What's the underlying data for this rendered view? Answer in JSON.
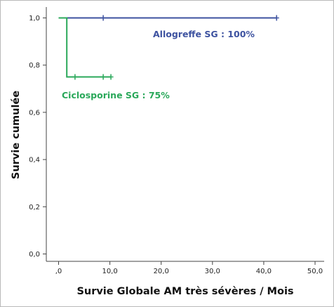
{
  "chart_data": {
    "type": "line",
    "subtype": "kaplan-meier",
    "xlabel": "Survie Globale AM très sévères / Mois",
    "ylabel": "Survie cumulée",
    "xlim": [
      0,
      50
    ],
    "ylim": [
      0,
      1
    ],
    "x_ticks": [
      0,
      10,
      20,
      30,
      40,
      50
    ],
    "x_tick_labels": [
      ",0",
      "10,0",
      "20,0",
      "30,0",
      "40,0",
      "50,0"
    ],
    "y_ticks": [
      0,
      0.2,
      0.4,
      0.6,
      0.8,
      1.0
    ],
    "y_tick_labels": [
      "0,0",
      "0,2",
      "0,4",
      "0,6",
      "0,8",
      "1,0"
    ],
    "grid": false,
    "series": [
      {
        "name": "Allogreffe SG : 100%",
        "color": "#3d52a0",
        "steps": [
          [
            0,
            1.0
          ],
          [
            42.5,
            1.0
          ]
        ],
        "censored": [
          [
            8.7,
            1.0
          ],
          [
            42.5,
            1.0
          ]
        ]
      },
      {
        "name": "Ciclosporine SG : 75%",
        "color": "#2aa85a",
        "steps": [
          [
            0,
            1.0
          ],
          [
            1.6,
            1.0
          ],
          [
            1.6,
            0.75
          ],
          [
            10.2,
            0.75
          ]
        ],
        "censored": [
          [
            3.2,
            0.75
          ],
          [
            8.7,
            0.75
          ],
          [
            10.2,
            0.75
          ]
        ]
      }
    ]
  }
}
